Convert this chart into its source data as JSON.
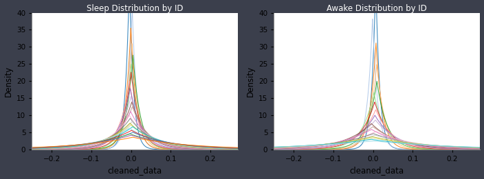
{
  "background_color": "#3b3f4c",
  "plot_background": "#ffffff",
  "ylabel": "Density",
  "xlabel": "cleaned_data",
  "xlim": [
    -0.25,
    0.27
  ],
  "ylim": [
    0,
    40
  ],
  "yticks": [
    0,
    5,
    10,
    15,
    20,
    25,
    30,
    35,
    40
  ],
  "xticks": [
    -0.2,
    -0.1,
    0.0,
    0.1,
    0.2
  ],
  "left_title": "Sleep Distribution by ID",
  "right_title": "Awake Distribution by ID",
  "tick_fontsize": 7.5,
  "label_fontsize": 8.5,
  "n_sleep": 25,
  "n_awake": 20,
  "sleep_stds": [
    0.01,
    0.012,
    0.014,
    0.016,
    0.018,
    0.02,
    0.022,
    0.025,
    0.028,
    0.032,
    0.036,
    0.04,
    0.045,
    0.05,
    0.055,
    0.06,
    0.065,
    0.07,
    0.075,
    0.08,
    0.09,
    0.1,
    0.11,
    0.12,
    0.14
  ],
  "awake_stds": [
    0.01,
    0.013,
    0.016,
    0.02,
    0.025,
    0.03,
    0.036,
    0.043,
    0.05,
    0.058,
    0.066,
    0.075,
    0.085,
    0.095,
    0.108,
    0.12,
    0.135,
    0.15,
    0.17,
    0.2
  ]
}
